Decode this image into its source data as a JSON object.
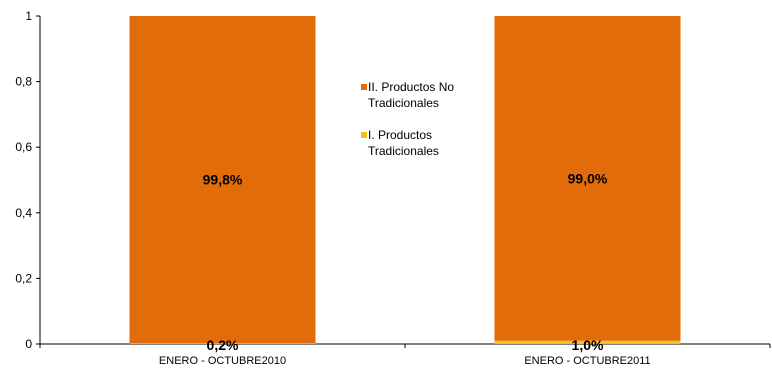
{
  "chart_data": {
    "type": "bar",
    "stacked": true,
    "categories": [
      "ENERO - OCTUBRE2010",
      "ENERO - OCTUBRE2011"
    ],
    "series": [
      {
        "name": "I. Productos Tradicionales",
        "values": [
          0.002,
          0.01
        ],
        "labels": [
          "0,2%",
          "1,0%"
        ],
        "color": "#F5C01A"
      },
      {
        "name": "II. Productos No Tradicionales",
        "values": [
          0.998,
          0.99
        ],
        "labels": [
          "99,8%",
          "99,0%"
        ],
        "color": "#E36C0A"
      }
    ],
    "ylim": [
      0,
      1
    ],
    "yticks": [
      "0",
      "0,2",
      "0,4",
      "0,6",
      "0,8",
      "1"
    ],
    "legend": {
      "position": "center",
      "items": [
        {
          "lines": [
            "II. Productos No",
            "Tradicionales"
          ],
          "color": "#E36C0A"
        },
        {
          "lines": [
            "I. Productos",
            "Tradicionales"
          ],
          "color": "#F5C01A"
        }
      ]
    },
    "grid": false
  }
}
